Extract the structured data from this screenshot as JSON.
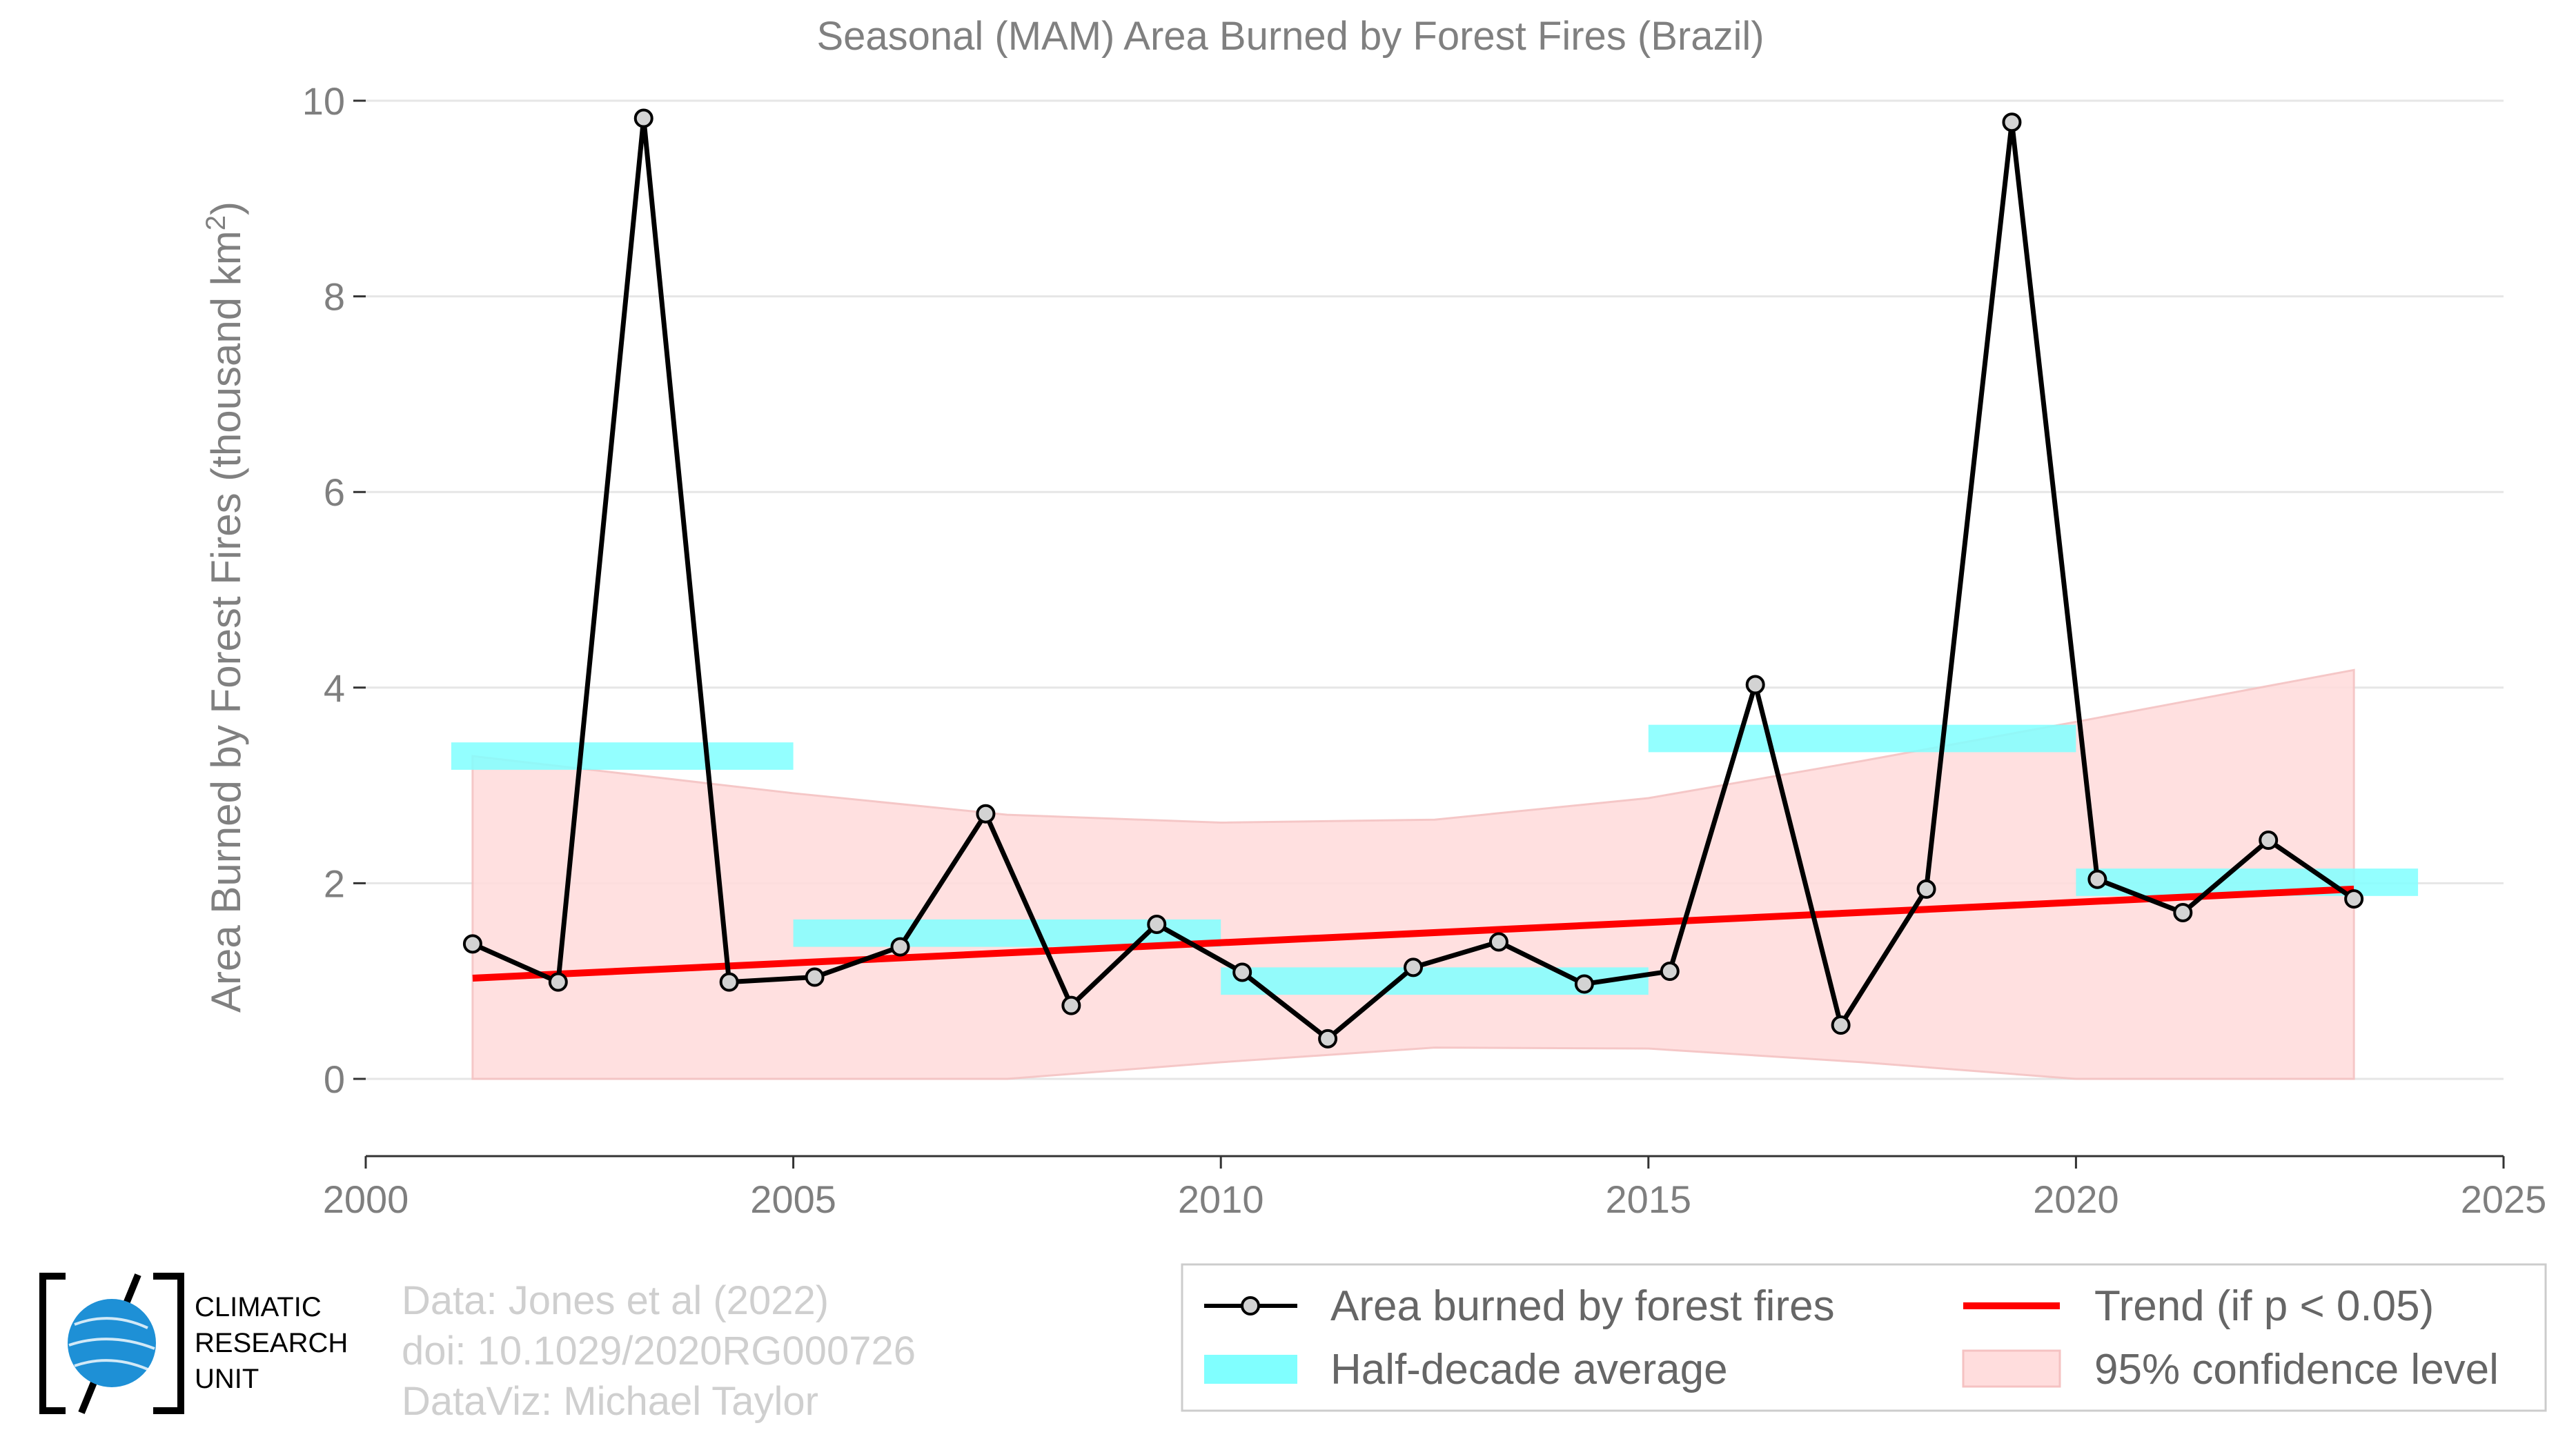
{
  "chart_data": {
    "type": "line",
    "title": "Seasonal (MAM) Area Burned by Forest Fires (Brazil)",
    "xlabel": "",
    "ylabel": "Area Burned by Forest Fires (thousand km",
    "ylabel_superscript": "2",
    "ylabel_close": ")",
    "xlim": [
      2000,
      2025
    ],
    "ylim": [
      0,
      10
    ],
    "x_ticks": [
      "2000",
      "2005",
      "2010",
      "2015",
      "2020",
      "2025"
    ],
    "y_ticks": [
      "0",
      "2",
      "4",
      "6",
      "8",
      "10"
    ],
    "grid": true,
    "legend_position": "bottom-right",
    "series": [
      {
        "name": "Area burned by forest fires",
        "color": "#000000",
        "x": [
          2001.25,
          2002.25,
          2003.25,
          2004.25,
          2005.25,
          2006.25,
          2007.25,
          2008.25,
          2009.25,
          2010.25,
          2011.25,
          2012.25,
          2013.25,
          2014.25,
          2015.25,
          2016.25,
          2017.25,
          2018.25,
          2019.25,
          2020.25,
          2021.25,
          2022.25,
          2023.25
        ],
        "y": [
          1.38,
          0.99,
          9.82,
          0.99,
          1.04,
          1.35,
          2.71,
          0.75,
          1.58,
          1.09,
          0.41,
          1.14,
          1.4,
          0.97,
          1.1,
          4.03,
          0.55,
          1.94,
          9.78,
          2.04,
          1.7,
          2.44,
          1.84
        ]
      },
      {
        "name": "Trend (if p < 0.05)",
        "color": "#ff0000",
        "x": [
          2001.25,
          2023.25
        ],
        "y": [
          1.03,
          1.94
        ]
      }
    ],
    "half_decade_average": {
      "name": "Half-decade average",
      "color": "#80ffff",
      "segments": [
        {
          "x_start": 2001,
          "x_end": 2005,
          "y": 3.3
        },
        {
          "x_start": 2005,
          "x_end": 2010,
          "y": 1.49
        },
        {
          "x_start": 2010,
          "x_end": 2015,
          "y": 1.0
        },
        {
          "x_start": 2015,
          "x_end": 2020,
          "y": 3.48
        },
        {
          "x_start": 2020,
          "x_end": 2024,
          "y": 2.01
        }
      ]
    },
    "confidence_band": {
      "name": "95% confidence level",
      "color": "#ffdddd",
      "x": [
        2001.25,
        2005,
        2007.5,
        2010,
        2012.5,
        2015,
        2017.5,
        2020,
        2023.25
      ],
      "upper": [
        3.3,
        2.92,
        2.7,
        2.62,
        2.65,
        2.87,
        3.25,
        3.65,
        4.18
      ],
      "lower": [
        0.0,
        0.0,
        0.0,
        0.17,
        0.32,
        0.31,
        0.17,
        0.0,
        0.0
      ]
    }
  },
  "credits": {
    "line1": "Data: Jones et al (2022)",
    "line2": "doi: 10.1029/2020RG000726",
    "line3": "DataViz: Michael Taylor"
  },
  "logo": {
    "line1": "CLIMATIC",
    "line2": "RESEARCH",
    "line3": "UNIT",
    "globe_color": "#1e90d6"
  }
}
